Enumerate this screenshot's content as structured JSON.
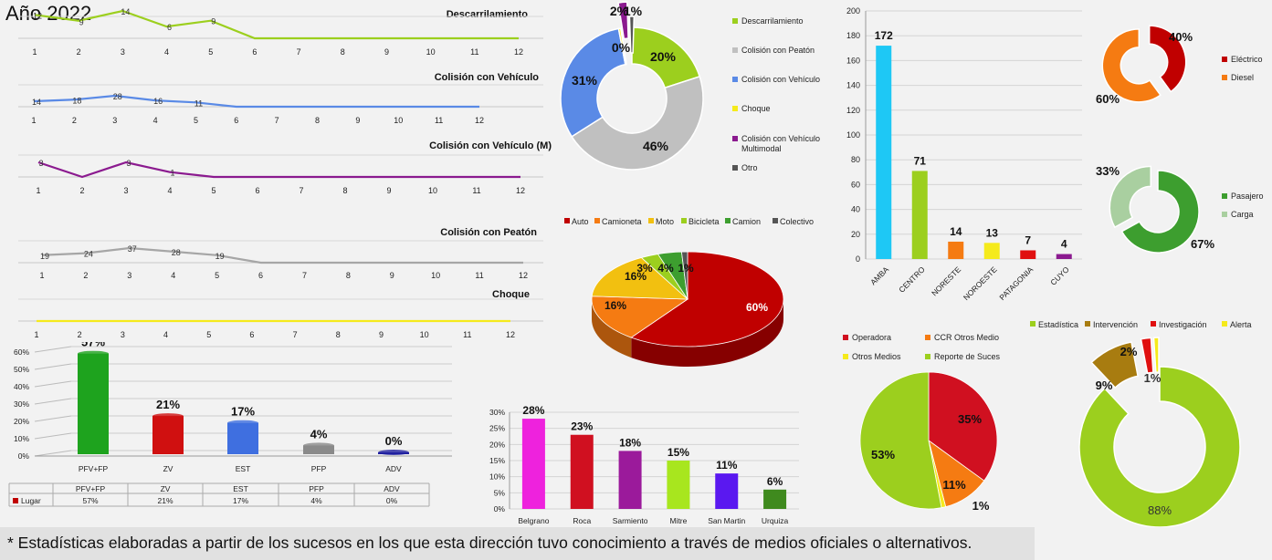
{
  "title": "Año 2022",
  "footnote": "* Estadísticas elaboradas a partir de los sucesos en los que esta dirección tuvo conocimiento a través de medios oficiales o alternativos.",
  "chart_data": [
    {
      "id": "line1",
      "type": "line",
      "title": "Descarrilamiento",
      "color": "#9ccf1e",
      "x": [
        1,
        2,
        3,
        4,
        5,
        6,
        7,
        8,
        9,
        10,
        11,
        12
      ],
      "values": [
        12,
        9,
        14,
        6,
        9,
        0,
        0,
        0,
        0,
        0,
        0,
        0
      ],
      "labels": [
        "12",
        "9",
        "14",
        "6",
        "9",
        "",
        "",
        "",
        "",
        "",
        "",
        ""
      ]
    },
    {
      "id": "line2",
      "type": "line",
      "title": "Colisión con Vehículo",
      "color": "#5a8ae6",
      "x": [
        1,
        2,
        3,
        4,
        5,
        6,
        7,
        8,
        9,
        10,
        11,
        12
      ],
      "values": [
        14,
        18,
        28,
        16,
        11,
        0,
        0,
        0,
        0,
        0,
        0,
        0
      ],
      "labels": [
        "14",
        "18",
        "28",
        "16",
        "11",
        "",
        "",
        "",
        "",
        "",
        "",
        ""
      ]
    },
    {
      "id": "line3",
      "type": "line",
      "title": "Colisión con Vehículo (M)",
      "color": "#8b1a8f",
      "x": [
        1,
        2,
        3,
        4,
        5,
        6,
        7,
        8,
        9,
        10,
        11,
        12
      ],
      "values": [
        3,
        0,
        3,
        1,
        0,
        0,
        0,
        0,
        0,
        0,
        0,
        0
      ],
      "labels": [
        "3",
        "",
        "3",
        "1",
        "",
        "",
        "",
        "",
        "",
        "",
        "",
        ""
      ]
    },
    {
      "id": "line4",
      "type": "line",
      "title": "Colisión con Peatón",
      "color": "#a6a6a6",
      "x": [
        1,
        2,
        3,
        4,
        5,
        6,
        7,
        8,
        9,
        10,
        11,
        12
      ],
      "values": [
        19,
        24,
        37,
        28,
        19,
        0,
        0,
        0,
        0,
        0,
        0,
        0
      ],
      "labels": [
        "19",
        "24",
        "37",
        "28",
        "19",
        "",
        "",
        "",
        "",
        "",
        "",
        ""
      ]
    },
    {
      "id": "line5",
      "type": "line",
      "title": "Choque",
      "color": "#f5ea1c",
      "x": [
        1,
        2,
        3,
        4,
        5,
        6,
        7,
        8,
        9,
        10,
        11,
        12
      ],
      "values": [
        0,
        0,
        0,
        0,
        0,
        0,
        0,
        0,
        0,
        0,
        0,
        0
      ],
      "labels": [
        "",
        "",
        "",
        "",
        "",
        "",
        "",
        "",
        "",
        "",
        "",
        ""
      ]
    },
    {
      "id": "donut-type",
      "type": "pie",
      "series": [
        {
          "name": "Descarrilamiento",
          "value": 20,
          "label": "20%",
          "color": "#9ccf1e"
        },
        {
          "name": "Colisión con Peatón",
          "value": 46,
          "label": "46%",
          "color": "#c0c0c0"
        },
        {
          "name": "Colisión con Vehículo",
          "value": 31,
          "label": "31%",
          "color": "#5a8ae6"
        },
        {
          "name": "Choque",
          "value": 0,
          "label": "0%",
          "color": "#f5ea1c"
        },
        {
          "name": "Colisión con Vehículo Multimodal",
          "value": 2,
          "label": "2%",
          "color": "#8b1a8f"
        },
        {
          "name": "Otro",
          "value": 1,
          "label": "1%",
          "color": "#555555"
        }
      ]
    },
    {
      "id": "pie-vehicle",
      "type": "pie",
      "series": [
        {
          "name": "Auto",
          "value": 60,
          "label": "60%",
          "color": "#c00000"
        },
        {
          "name": "Camioneta",
          "value": 16,
          "label": "16%",
          "color": "#f57b12"
        },
        {
          "name": "Moto",
          "value": 16,
          "label": "16%",
          "color": "#f2c010"
        },
        {
          "name": "Bicicleta",
          "value": 3,
          "label": "3%",
          "color": "#9ccf1e"
        },
        {
          "name": "Camion",
          "value": 4,
          "label": "4%",
          "color": "#3d9e2f"
        },
        {
          "name": "Colectivo",
          "value": 1,
          "label": "1%",
          "color": "#555555"
        }
      ]
    },
    {
      "id": "bar-region",
      "type": "bar",
      "categories": [
        "AMBA",
        "CENTRO",
        "NORESTE",
        "NOROESTE",
        "PATAGONIA",
        "CUYO"
      ],
      "values": [
        172,
        71,
        14,
        13,
        7,
        4
      ],
      "colors": [
        "#1ec8f5",
        "#9ccf1e",
        "#f57b12",
        "#f5ea1c",
        "#e01010",
        "#8b1a8f"
      ],
      "ylim": [
        0,
        200
      ],
      "yticks": [
        0,
        20,
        40,
        60,
        80,
        100,
        120,
        140,
        160,
        180,
        200
      ]
    },
    {
      "id": "donut-traction",
      "type": "pie",
      "series": [
        {
          "name": "Eléctrico",
          "value": 40,
          "label": "40%",
          "color": "#c00000"
        },
        {
          "name": "Diesel",
          "value": 60,
          "label": "60%",
          "color": "#f57b12"
        }
      ]
    },
    {
      "id": "donut-service",
      "type": "pie",
      "series": [
        {
          "name": "Pasajero",
          "value": 67,
          "label": "67%",
          "color": "#3d9e2f"
        },
        {
          "name": "Carga",
          "value": 33,
          "label": "33%",
          "color": "#a9cfa0"
        }
      ]
    },
    {
      "id": "bar-lugar",
      "type": "bar",
      "categories": [
        "PFV+FP",
        "ZV",
        "EST",
        "PFP",
        "ADV"
      ],
      "values": [
        57,
        21,
        17,
        4,
        0
      ],
      "labels": [
        "57%",
        "21%",
        "17%",
        "4%",
        "0%"
      ],
      "series_name": "Lugar",
      "yticks": [
        "0%",
        "10%",
        "20%",
        "30%",
        "40%",
        "50%",
        "60%"
      ],
      "colors": [
        "#1ea31e",
        "#d01010",
        "#3f6fe0",
        "#8a8a8a",
        "#2020a0"
      ]
    },
    {
      "id": "bar-linea",
      "type": "bar",
      "categories": [
        "Belgrano",
        "Roca",
        "Sarmiento",
        "Mitre",
        "San Martin",
        "Urquiza"
      ],
      "values": [
        28,
        23,
        18,
        15,
        11,
        6
      ],
      "labels": [
        "28%",
        "23%",
        "18%",
        "15%",
        "11%",
        "6%"
      ],
      "yticks": [
        "0%",
        "5%",
        "10%",
        "15%",
        "20%",
        "25%",
        "30%"
      ],
      "colors": [
        "#ee22dd",
        "#d01020",
        "#9b1a9b",
        "#a8e61e",
        "#5a18f0",
        "#3f8a1e"
      ]
    },
    {
      "id": "pie-source",
      "type": "pie",
      "series": [
        {
          "name": "Operadora",
          "value": 35,
          "label": "35%",
          "color": "#d01020"
        },
        {
          "name": "CCR Otros Medio",
          "value": 11,
          "label": "11%",
          "color": "#f57b12"
        },
        {
          "name": "Otros Medios",
          "value": 1,
          "label": "1%",
          "color": "#f5ea1c"
        },
        {
          "name": "Reporte de Suces",
          "value": 53,
          "label": "53%",
          "color": "#9ccf1e"
        }
      ]
    },
    {
      "id": "donut-intervention",
      "type": "pie",
      "series": [
        {
          "name": "Estadística",
          "value": 88,
          "label": "88%",
          "color": "#9ccf1e"
        },
        {
          "name": "Intervención",
          "value": 9,
          "label": "9%",
          "color": "#a87c10"
        },
        {
          "name": "Investigación",
          "value": 2,
          "label": "2%",
          "color": "#e01010"
        },
        {
          "name": "Alerta",
          "value": 1,
          "label": "1%",
          "color": "#f5ea1c"
        }
      ]
    }
  ]
}
